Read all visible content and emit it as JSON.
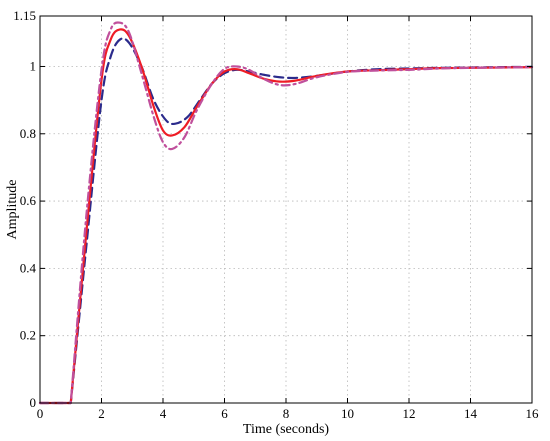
{
  "chart_data": {
    "type": "line",
    "title": "",
    "xlabel": "Time (seconds)",
    "ylabel": "Amplitude",
    "xlim": [
      0,
      16
    ],
    "ylim": [
      0,
      1.15
    ],
    "grid": true,
    "xticks": [
      0,
      2,
      4,
      6,
      8,
      10,
      12,
      14,
      16
    ],
    "xtick_labels": [
      "0",
      "2",
      "4",
      "6",
      "8",
      "10",
      "12",
      "14",
      "16"
    ],
    "yticks": [
      0,
      0.2,
      0.4,
      0.6,
      0.8,
      1,
      1.15
    ],
    "ytick_labels": [
      "0",
      "0.2",
      "0.4",
      "0.6",
      "0.8",
      "1",
      "1.15"
    ],
    "series": [
      {
        "color": "#2b2b8c",
        "style": "dashed",
        "x": [
          0,
          1,
          1.5,
          2,
          2.3,
          2.6,
          2.9,
          3.3,
          3.7,
          4.1,
          4.4,
          4.8,
          5.2,
          5.6,
          6.0,
          6.4,
          6.8,
          7.3,
          7.8,
          8.3,
          9.0,
          10,
          11,
          12,
          13,
          14,
          15,
          16
        ],
        "y": [
          0,
          0,
          0.46,
          0.9,
          1.03,
          1.08,
          1.07,
          1.0,
          0.9,
          0.84,
          0.83,
          0.85,
          0.9,
          0.95,
          0.98,
          0.99,
          0.985,
          0.975,
          0.968,
          0.966,
          0.972,
          0.985,
          0.992,
          0.994,
          0.996,
          0.997,
          0.998,
          0.999
        ]
      },
      {
        "color": "#ee1c25",
        "style": "solid",
        "x": [
          0,
          1,
          1.5,
          2,
          2.3,
          2.6,
          2.9,
          3.3,
          3.7,
          4.0,
          4.3,
          4.7,
          5.1,
          5.6,
          6.0,
          6.4,
          6.8,
          7.3,
          7.8,
          8.3,
          9.0,
          10,
          11,
          12,
          13,
          14,
          15,
          16
        ],
        "y": [
          0,
          0,
          0.5,
          0.96,
          1.08,
          1.11,
          1.09,
          1.0,
          0.88,
          0.81,
          0.795,
          0.82,
          0.88,
          0.95,
          0.985,
          0.992,
          0.98,
          0.963,
          0.955,
          0.958,
          0.972,
          0.985,
          0.989,
          0.992,
          0.995,
          0.996,
          0.997,
          0.998
        ]
      },
      {
        "color": "#c0509c",
        "style": "dashdot",
        "x": [
          0,
          1,
          1.5,
          2,
          2.3,
          2.6,
          2.9,
          3.3,
          3.7,
          4.0,
          4.3,
          4.7,
          5.1,
          5.6,
          6.0,
          6.4,
          6.8,
          7.3,
          7.8,
          8.3,
          9.0,
          10,
          11,
          12,
          13,
          14,
          15,
          16
        ],
        "y": [
          0,
          0,
          0.55,
          0.99,
          1.11,
          1.13,
          1.1,
          0.98,
          0.85,
          0.775,
          0.755,
          0.79,
          0.87,
          0.95,
          0.993,
          1.0,
          0.99,
          0.962,
          0.945,
          0.948,
          0.968,
          0.984,
          0.988,
          0.99,
          0.994,
          0.996,
          0.997,
          0.998
        ]
      }
    ]
  }
}
